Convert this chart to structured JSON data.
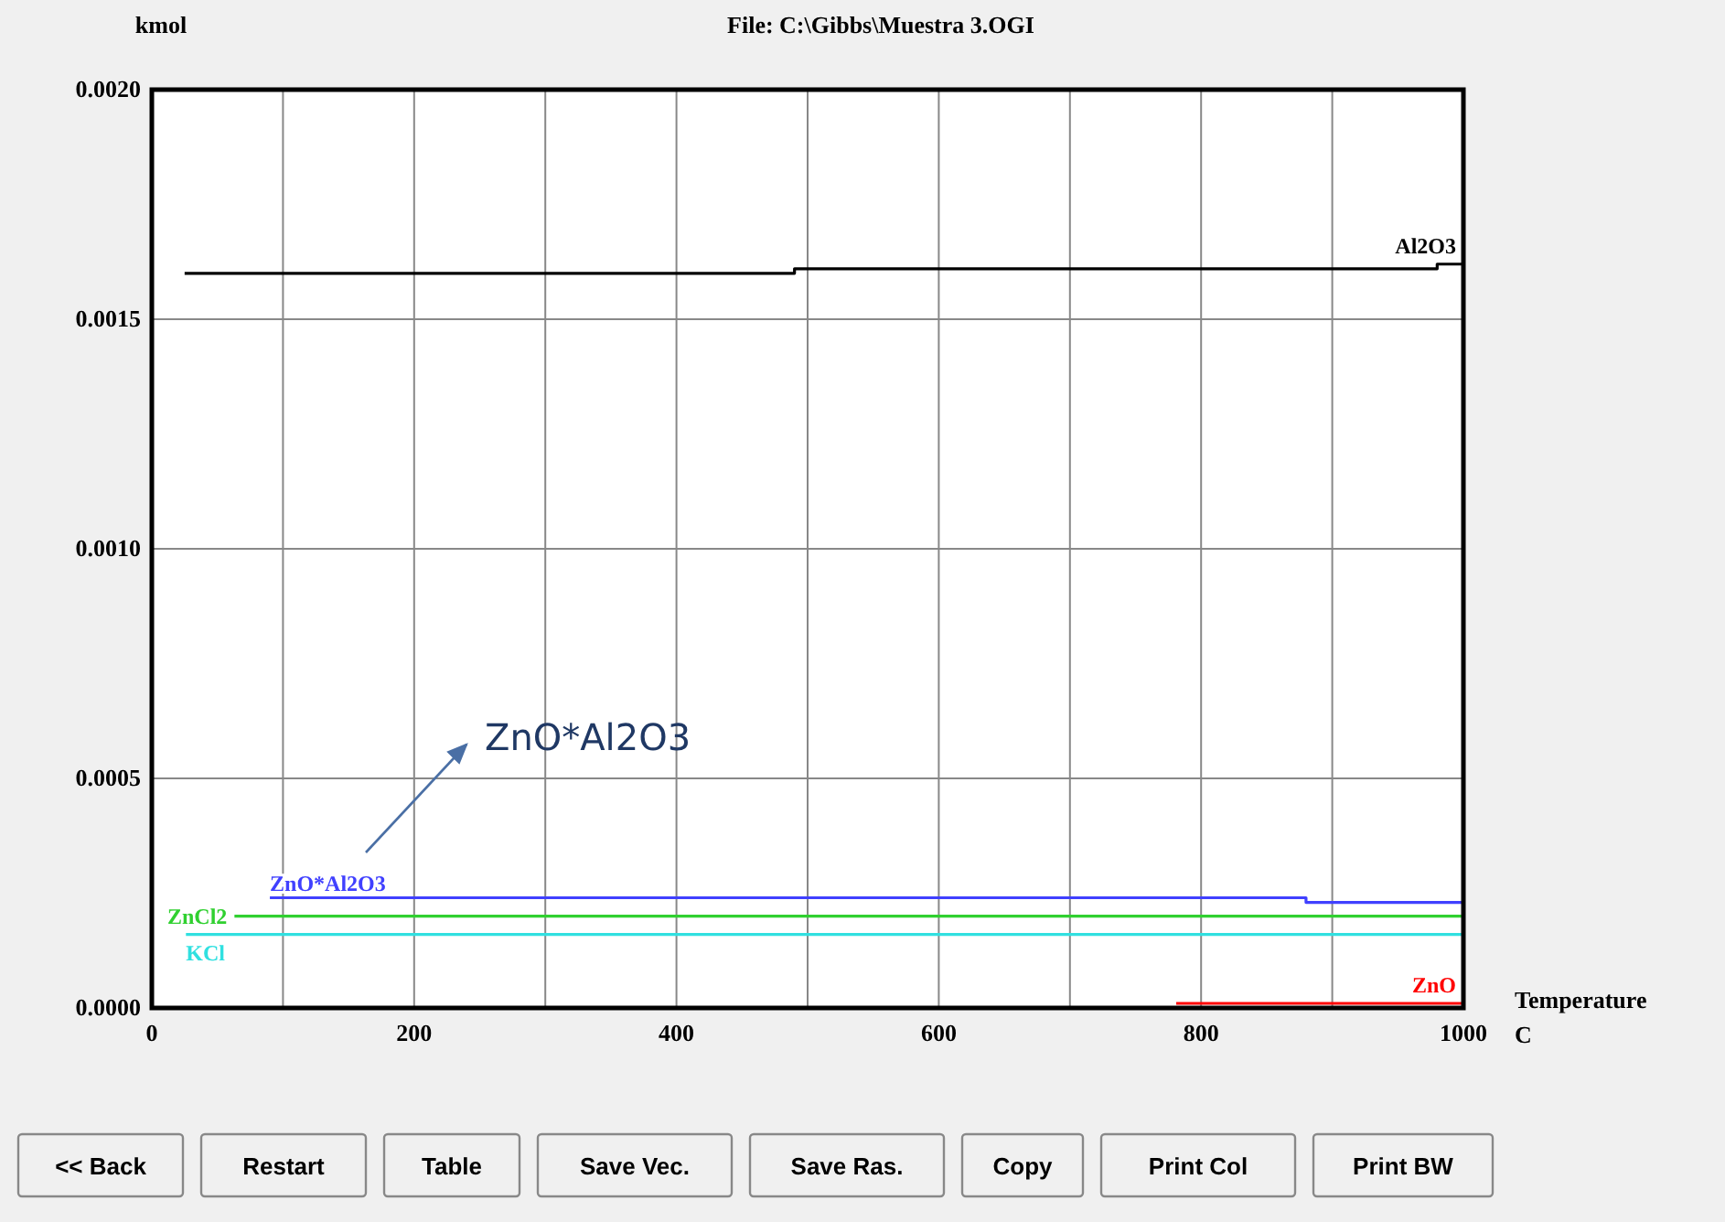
{
  "chart_data": {
    "type": "line",
    "title": "File: C:\\Gibbs\\Muestra 3.OGI",
    "ylabel": "kmol",
    "xlabel": "Temperature C",
    "xlim": [
      0,
      1000
    ],
    "ylim": [
      0,
      0.002
    ],
    "xticks": [
      0,
      {
        "value": 100,
        "label": null
      },
      200,
      {
        "value": 300,
        "label": null
      },
      400,
      {
        "value": 500,
        "label": null
      },
      600,
      {
        "value": 700,
        "label": null
      },
      800,
      {
        "value": 900,
        "label": null
      },
      1000
    ],
    "yticks": [
      {
        "value": 0,
        "label": "0.0000"
      },
      {
        "value": 0.0005,
        "label": "0.0005"
      },
      {
        "value": 0.001,
        "label": "0.0010"
      },
      {
        "value": 0.0015,
        "label": "0.0015"
      },
      {
        "value": 0.002,
        "label": "0.0020"
      }
    ],
    "grid": true,
    "series": [
      {
        "name": "Al2O3",
        "color": "#000000",
        "x": [
          25,
          490,
          490,
          980,
          980,
          1000
        ],
        "values": [
          0.0016,
          0.0016,
          0.00161,
          0.00161,
          0.00162,
          0.00162
        ]
      },
      {
        "name": "ZnO*Al2O3",
        "color": "#4040ff",
        "x": [
          90,
          880,
          880,
          1000
        ],
        "values": [
          0.00024,
          0.00024,
          0.00023,
          0.00023
        ]
      },
      {
        "name": "ZnCl2",
        "color": "#30d030",
        "x": [
          63,
          1000
        ],
        "values": [
          0.0002,
          0.0002
        ]
      },
      {
        "name": "KCl",
        "color": "#30e0e0",
        "x": [
          26,
          1000
        ],
        "values": [
          0.00016,
          0.00016
        ]
      },
      {
        "name": "ZnO",
        "color": "#ff0000",
        "x": [
          781,
          1000
        ],
        "values": [
          1e-05,
          1e-05
        ]
      }
    ],
    "annotations": [
      "ZnO*Al2O3",
      "<< Back",
      "Restart",
      "Table",
      "Save Vec.",
      "Save Ras.",
      "Copy",
      "Print Col",
      "Print BW"
    ]
  }
}
